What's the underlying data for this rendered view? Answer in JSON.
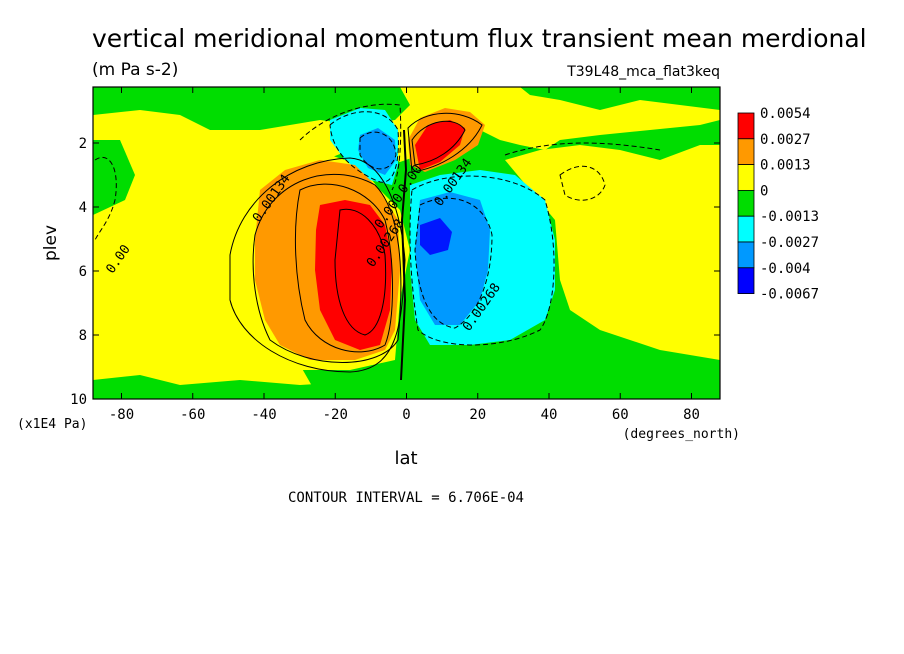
{
  "chart_data": {
    "type": "heatmap",
    "title": "vertical meridional momentum flux transient mean merdional",
    "units": "(m Pa s-2)",
    "dataset": "T39L48_mca_flat3keq",
    "xlabel": "lat",
    "xunits": "(degrees_north)",
    "ylabel": "plev",
    "yunits": "(x1E4 Pa)",
    "xlim": [
      -88,
      88
    ],
    "ylim": [
      10,
      0.1
    ],
    "xticks": [
      -80,
      -60,
      -40,
      -20,
      0,
      20,
      40,
      60,
      80
    ],
    "xtick_labels": [
      "-80",
      "-60",
      "-40",
      "-20",
      "0",
      "20",
      "40",
      "60",
      "80"
    ],
    "yticks": [
      2,
      4,
      6,
      8,
      10
    ],
    "ytick_labels": [
      "2",
      "4",
      "6",
      "8",
      "10"
    ],
    "contour_interval": "CONTOUR INTERVAL = 6.706E-04",
    "legend": {
      "placement": "right",
      "labels": [
        "0.0054",
        "0.0027",
        "0.0013",
        "0",
        "-0.0013",
        "-0.0027",
        "-0.004",
        "-0.0067"
      ],
      "colors": [
        "#ff0000",
        "#ff9900",
        "#ffff00",
        "#00dd00",
        "#00ffff",
        "#0099ff",
        "#0000ff"
      ]
    },
    "contour_labels": [
      {
        "text": "0.00134",
        "x": -37,
        "y": 3.8
      },
      {
        "text": "0.00",
        "x": -80,
        "y": 5.7
      },
      {
        "text": "0.00268",
        "x": -5,
        "y": 5.2
      },
      {
        "text": "0.000",
        "x": -4,
        "y": 4.2
      },
      {
        "text": "0.00",
        "x": 2,
        "y": 3.2
      },
      {
        "text": "0.00134",
        "x": 14,
        "y": 3.3
      },
      {
        "text": "0.00268",
        "x": 22,
        "y": 7.2
      }
    ],
    "features": [
      {
        "sign": "positive",
        "level": 3,
        "cx": -15,
        "cy": 5.8,
        "rx": 13,
        "ry": 2.6
      },
      {
        "sign": "negative",
        "level": 2,
        "cx": 12,
        "cy": 5.2,
        "rx": 8,
        "ry": 2.4
      },
      {
        "sign": "negative",
        "level": 3,
        "cx": 7,
        "cy": 4.7,
        "rx": 4,
        "ry": 0.9
      },
      {
        "sign": "positive",
        "level": 3,
        "cx": 9,
        "cy": 2.1,
        "rx": 5,
        "ry": 1.0
      },
      {
        "sign": "negative",
        "level": 3,
        "cx": -8,
        "cy": 2.3,
        "rx": 4,
        "ry": 0.9
      }
    ]
  }
}
